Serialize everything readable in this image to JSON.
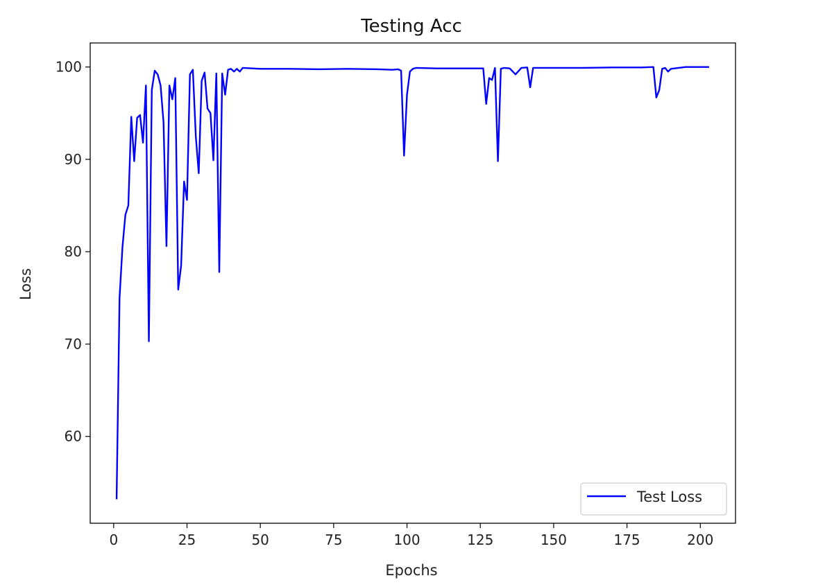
{
  "chart_data": {
    "type": "line",
    "title": "Testing Acc",
    "xlabel": "Epochs",
    "ylabel": "Loss",
    "xlim": [
      -8,
      212
    ],
    "ylim": [
      50.6,
      102.6
    ],
    "xticks": [
      0,
      25,
      50,
      75,
      100,
      125,
      150,
      175,
      200
    ],
    "yticks": [
      60,
      70,
      80,
      90,
      100
    ],
    "grid": false,
    "legend": "lower-right",
    "series": [
      {
        "name": "Test Loss",
        "color": "#0000ff",
        "points": [
          [
            1,
            53.2
          ],
          [
            2,
            75.0
          ],
          [
            3,
            80.5
          ],
          [
            4,
            84.0
          ],
          [
            5,
            85.0
          ],
          [
            6,
            94.6
          ],
          [
            7,
            89.8
          ],
          [
            8,
            94.5
          ],
          [
            9,
            94.8
          ],
          [
            10,
            91.8
          ],
          [
            11,
            98.0
          ],
          [
            12,
            70.3
          ],
          [
            13,
            97.5
          ],
          [
            14,
            99.6
          ],
          [
            15,
            99.2
          ],
          [
            16,
            98.0
          ],
          [
            17,
            94.0
          ],
          [
            18,
            80.6
          ],
          [
            19,
            98.0
          ],
          [
            20,
            96.5
          ],
          [
            21,
            98.8
          ],
          [
            22,
            75.9
          ],
          [
            23,
            78.5
          ],
          [
            24,
            87.6
          ],
          [
            25,
            85.6
          ],
          [
            26,
            99.2
          ],
          [
            27,
            99.7
          ],
          [
            28,
            92.5
          ],
          [
            29,
            88.5
          ],
          [
            30,
            98.5
          ],
          [
            31,
            99.4
          ],
          [
            32,
            95.5
          ],
          [
            33,
            95.0
          ],
          [
            34,
            89.9
          ],
          [
            35,
            99.3
          ],
          [
            36,
            77.8
          ],
          [
            37,
            99.3
          ],
          [
            38,
            97.0
          ],
          [
            39,
            99.7
          ],
          [
            40,
            99.8
          ],
          [
            41,
            99.5
          ],
          [
            42,
            99.8
          ],
          [
            43,
            99.5
          ],
          [
            44,
            99.9
          ],
          [
            50,
            99.8
          ],
          [
            60,
            99.8
          ],
          [
            70,
            99.75
          ],
          [
            80,
            99.8
          ],
          [
            90,
            99.75
          ],
          [
            95,
            99.7
          ],
          [
            97,
            99.75
          ],
          [
            98,
            99.6
          ],
          [
            99,
            90.4
          ],
          [
            100,
            97.0
          ],
          [
            101,
            99.5
          ],
          [
            102,
            99.8
          ],
          [
            103,
            99.9
          ],
          [
            110,
            99.85
          ],
          [
            120,
            99.85
          ],
          [
            126,
            99.85
          ],
          [
            127,
            96.0
          ],
          [
            128,
            98.8
          ],
          [
            129,
            98.6
          ],
          [
            130,
            99.9
          ],
          [
            131,
            89.8
          ],
          [
            132,
            99.8
          ],
          [
            133,
            99.9
          ],
          [
            135,
            99.85
          ],
          [
            137,
            99.2
          ],
          [
            139,
            99.9
          ],
          [
            141,
            99.95
          ],
          [
            142,
            97.8
          ],
          [
            143,
            99.9
          ],
          [
            150,
            99.9
          ],
          [
            160,
            99.9
          ],
          [
            170,
            99.95
          ],
          [
            180,
            99.95
          ],
          [
            184,
            100.0
          ],
          [
            185,
            96.7
          ],
          [
            186,
            97.5
          ],
          [
            187,
            99.8
          ],
          [
            188,
            99.9
          ],
          [
            189,
            99.5
          ],
          [
            190,
            99.8
          ],
          [
            195,
            100.0
          ],
          [
            200,
            100.0
          ],
          [
            203,
            100.0
          ]
        ]
      }
    ]
  }
}
